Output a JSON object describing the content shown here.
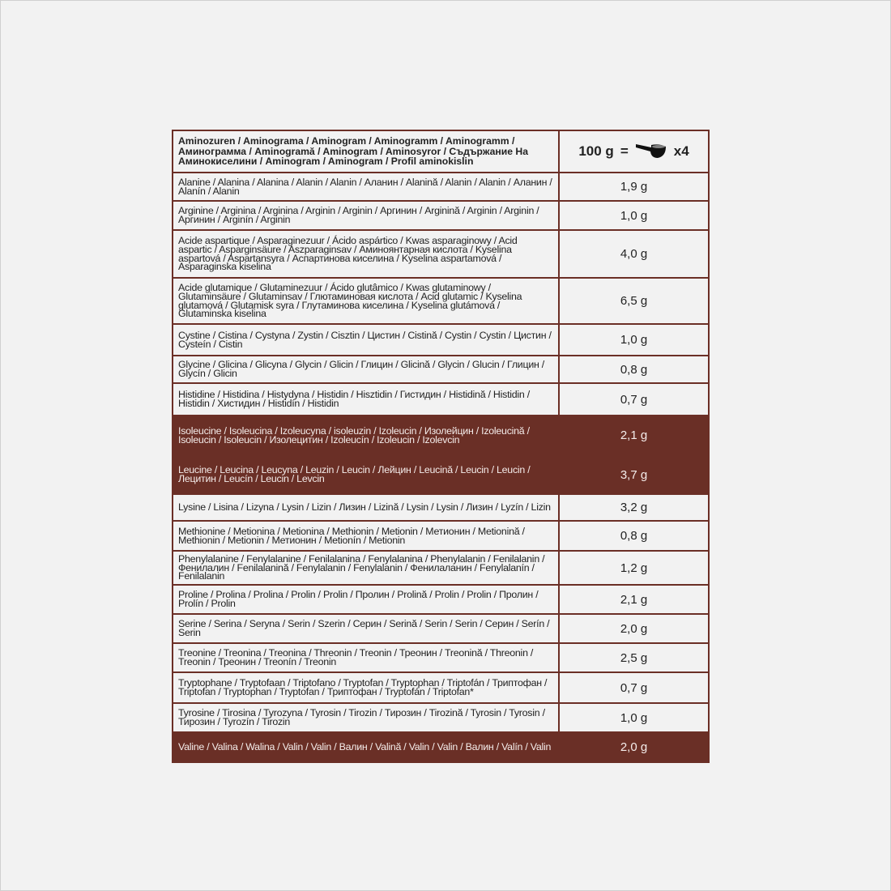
{
  "header": {
    "title": "Aminozuren / Aminograma / Aminogram / Aminogramm / Aminogramm / Аминограмма / Aminogramă / Aminogram / Aminosyror / Съдържание На Аминокиселини / Aminogram / Aminogram / Profil aminokislin",
    "portion": "100 g",
    "equals": "=",
    "scoop_icon": "scoop-icon",
    "multiplier": "x4"
  },
  "colors": {
    "highlight": "#6a2f26",
    "border": "#6b2f26",
    "background": "#f2f2f2"
  },
  "rows": [
    {
      "name": "Alanine / Alanina / Alanina / Alanin / Alanin / Аланин / Alanină / Alanin / Alanin / Аланин / Alanín / Alanin",
      "value": "1,9 g",
      "h": 35
    },
    {
      "name": "Arginine / Arginina / Arginina / Arginin / Arginin / Аргинин / Arginină / Arginin / Arginin / Аргинин / Arginín / Arginin",
      "value": "1,0 g",
      "h": 36
    },
    {
      "name": "Acide aspartique / Asparaginezuur / Ácido aspártico / Kwas asparaginowy / Acid aspartic / Asparginsäure / Aszparaginsav / Аминоянтарная кислота / Kyselina aspartová / Aspartansyra / Аспартинова киселина / Kyselina aspartamová / Asparaginska kiselina",
      "value": "4,0 g",
      "h": 59
    },
    {
      "name": "Acide glutamique / Glutaminezuur / Ácido glutâmico / Kwas glutaminowy / Glutaminsäure / Glutaminsav / Глютаминовая кислота / Acid glutamic / Kyselina glutamová / Glutamisk syra / Глутаминова киселина / Kyselina glutámová / Glutaminska kiselina",
      "value": "6,5 g",
      "h": 57
    },
    {
      "name": "Cystine / Cistina / Cystyna / Zystin / Cisztin / Цистин / Cistină / Cystin / Cystin / Цистин / Cysteín / Cistin",
      "value": "1,0 g",
      "h": 39
    },
    {
      "name": "Glycine / Glicina / Glicyna / Glycin / Glicin / Глицин / Glicină / Glycin / Glucin / Глицин / Glycín / Glicin",
      "value": "0,8 g",
      "h": 34
    },
    {
      "name": "Histidine / Histidina / Histydyna / Histidin / Hisztidin / Гистидин / Histidină / Histidin / Histidin / Хистидин / Histidín / Histidin",
      "value": "0,7 g",
      "h": 40
    },
    {
      "name": "Isoleucine / Isoleucina / Izoleucyna / isoleuzin / Izoleucin / Изолейцин / Izoleucină / Isoleucin / Isoleucin / Изолецитин / Izoleucín / Izoleucin / Izolevcin",
      "value": "2,1 g",
      "h": 49,
      "dark": true
    },
    {
      "name": "Leucine / Leucina / Leucyna / Leuzin / Leucin / Лейцин / Leucină / Leucin / Leucin / Лецитин / Leucín / Leucin / Levcin",
      "value": "3,7 g",
      "h": 48,
      "dark": true
    },
    {
      "name": "Lysine / Lisina / Lizyna / Lysin / Lizin / Лизин / Lizină / Lysin / Lysin / Лизин / Lyzín / Lizin",
      "value": "3,2 g",
      "h": 33
    },
    {
      "name": "Methionine / Metionina / Metionina / Methionin / Metionin / Метионин / Metionină / Methionin / Metionin / Метионин / Metionín / Metionin",
      "value": "0,8 g",
      "h": 37
    },
    {
      "name": "Phenylalanine / Fenylalanine / Fenilalanina / Fenylalanina / Phenylalanin / Fenilalanin / Фенилалин / Fenilalanină / Fenylalanin / Fenylalanin / Фенилаланин / Fenylalanín / Fenilalanin",
      "value": "1,2 g",
      "h": 42
    },
    {
      "name": "Proline / Prolina / Prolina / Prolin / Prolin / Пролин / Prolină / Prolin / Prolin / Пролин / Prolín / Prolin",
      "value": "2,1 g",
      "h": 36
    },
    {
      "name": "Serine / Serina / Seryna / Serin / Szerin / Серин / Serină / Serin / Serin / Серин / Serín / Serin",
      "value": "2,0 g",
      "h": 36
    },
    {
      "name": "Treonine / Treonina / Treonina / Threonin / Treonin / Треонин / Treonină / Threonin / Treonin / Треонин / Treonín / Treonin",
      "value": "2,5 g",
      "h": 36
    },
    {
      "name": "Tryptophane / Tryptofaan / Triptofano / Tryptofan / Tryptophan / Triptofán / Триптофан / Triptofan / Tryptophan / Tryptofan / Триптофан / Tryptofán / Triptofan*",
      "value": "0,7 g",
      "h": 38
    },
    {
      "name": "Tyrosine / Tirosina / Tyrozyna / Tyrosin / Tirozin / Тирозин / Tirozină / Tyrosin / Tyrosin / Тирозин / Tyrozín / Tirozin",
      "value": "1,0 g",
      "h": 36
    },
    {
      "name": "Valine / Valina / Walina / Valin / Valin / Валин / Valină / Valin / Valin / Валин / Valín / Valin",
      "value": "2,0 g",
      "h": 37,
      "dark": true
    }
  ]
}
